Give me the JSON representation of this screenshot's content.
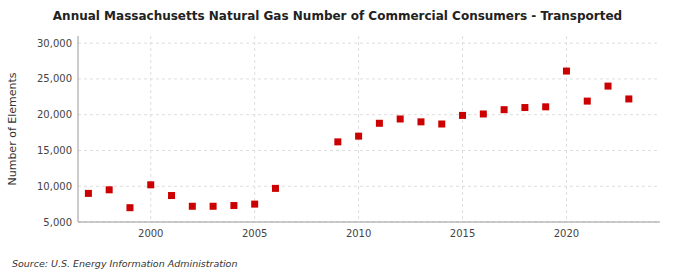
{
  "chart_data": {
    "type": "scatter",
    "title": "Annual Massachusetts Natural Gas Number of Commercial Consumers - Transported",
    "y_label": "Number of Elements",
    "annotation": "Source: U.S. Energy Information Administration",
    "x": [
      1997,
      1998,
      1999,
      2000,
      2001,
      2002,
      2003,
      2004,
      2005,
      2006,
      2009,
      2010,
      2011,
      2012,
      2013,
      2014,
      2015,
      2016,
      2017,
      2018,
      2019,
      2020,
      2021,
      2022,
      2023
    ],
    "values": [
      9000,
      9500,
      7000,
      10200,
      8700,
      7200,
      7200,
      7300,
      7500,
      9700,
      16200,
      17000,
      18800,
      19400,
      19000,
      18700,
      19900,
      20100,
      20700,
      21000,
      21100,
      26100,
      21900,
      24000,
      22200
    ],
    "color": "#cc0000",
    "marker": "square",
    "xlim": [
      1996.5,
      2024.5
    ],
    "xticks": [
      2000,
      2005,
      2010,
      2015,
      2020
    ],
    "ylim": [
      5000,
      31000
    ],
    "yticks": [
      {
        "value": 5000,
        "label": "5,000"
      },
      {
        "value": 10000,
        "label": "10,000"
      },
      {
        "value": 15000,
        "label": "15,000"
      },
      {
        "value": 20000,
        "label": "20,000"
      },
      {
        "value": 25000,
        "label": "25,000"
      },
      {
        "value": 30000,
        "label": "30,000"
      }
    ],
    "grid": true
  }
}
